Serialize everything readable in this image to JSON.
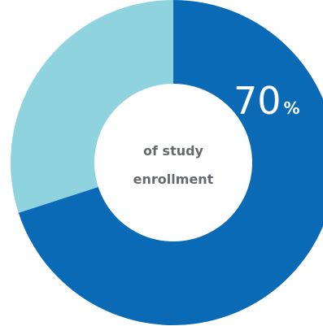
{
  "chart_data": {
    "type": "pie",
    "categories": [
      "of study enrollment",
      ""
    ],
    "values": [
      70,
      30
    ],
    "colors": [
      "#0a6ab5",
      "#8fd3df"
    ],
    "highlight": {
      "value": "70",
      "unit": "%",
      "label_lines": [
        "of study",
        "enrollment"
      ]
    }
  },
  "colors": {
    "primary": "#0a6ab5",
    "secondary": "#8fd3df",
    "center_fill": "#ffffff",
    "label_text": "#666a6e"
  }
}
